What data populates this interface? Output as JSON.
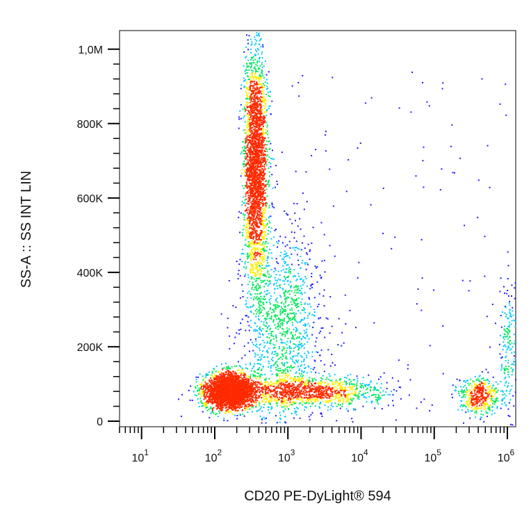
{
  "chart_data": {
    "type": "scatter",
    "title": "",
    "xlabel": "CD20 PE-DyLight® 594",
    "ylabel": "SS-A :: SS INT LIN",
    "x_scale": "log",
    "xlim": [
      5,
      1300000
    ],
    "ylim": [
      -15000,
      1050000
    ],
    "x_ticks": [
      {
        "base": "10",
        "exp": "1",
        "value": 10
      },
      {
        "base": "10",
        "exp": "2",
        "value": 100
      },
      {
        "base": "10",
        "exp": "3",
        "value": 1000
      },
      {
        "base": "10",
        "exp": "4",
        "value": 10000
      },
      {
        "base": "10",
        "exp": "5",
        "value": 100000
      },
      {
        "base": "10",
        "exp": "6",
        "value": 1000000
      }
    ],
    "y_ticks": [
      {
        "label": "0",
        "value": 0
      },
      {
        "label": "200K",
        "value": 200000
      },
      {
        "label": "400K",
        "value": 400000
      },
      {
        "label": "600K",
        "value": 600000
      },
      {
        "label": "800K",
        "value": 800000
      },
      {
        "label": "1,0M",
        "value": 1000000
      }
    ],
    "grid": false,
    "colormap": [
      "#1a1aff",
      "#00c8ff",
      "#00e85a",
      "#ffee00",
      "#ff2a00"
    ],
    "populations": [
      {
        "x_log10_center": 2.2,
        "x_log10_sd": 0.17,
        "y_center": 82000,
        "y_sd": 24000,
        "relative_count": 0.34
      },
      {
        "x_log10_center": 2.55,
        "x_log10_sd": 0.08,
        "y_center": 690000,
        "y_sd": 150000,
        "relative_count": 0.3
      },
      {
        "x_log10_center": 2.9,
        "x_log10_sd": 0.28,
        "y_center": 250000,
        "y_sd": 130000,
        "relative_count": 0.14
      },
      {
        "x_log10_center": 3.3,
        "x_log10_sd": 0.5,
        "y_center": 80000,
        "y_sd": 20000,
        "relative_count": 0.12
      },
      {
        "x_log10_center": 5.6,
        "x_log10_sd": 0.15,
        "y_center": 70000,
        "y_sd": 25000,
        "relative_count": 0.05
      },
      {
        "x_log10_center": 6.0,
        "x_log10_sd": 0.06,
        "y_center": 200000,
        "y_sd": 100000,
        "relative_count": 0.02
      }
    ]
  }
}
